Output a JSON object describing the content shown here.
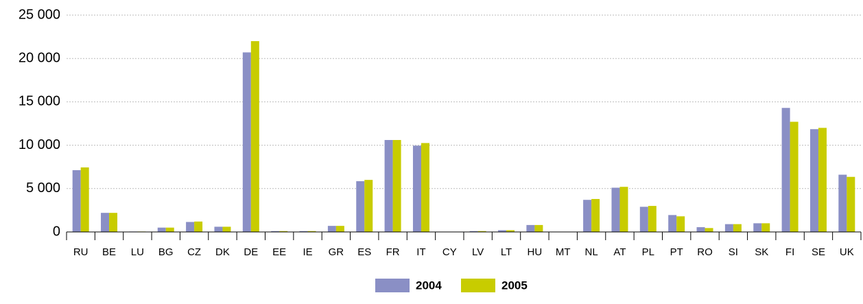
{
  "chart_data": {
    "type": "bar",
    "categories": [
      "RU",
      "BE",
      "LU",
      "BG",
      "CZ",
      "DK",
      "DE",
      "EE",
      "IE",
      "GR",
      "ES",
      "FR",
      "IT",
      "CY",
      "LV",
      "LT",
      "HU",
      "MT",
      "NL",
      "AT",
      "PL",
      "PT",
      "RO",
      "SI",
      "SK",
      "FI",
      "SE",
      "UK"
    ],
    "series": [
      {
        "name": "2004",
        "color": "#8a8fc5",
        "values": [
          7120,
          2200,
          50,
          500,
          1150,
          600,
          20700,
          100,
          100,
          700,
          5850,
          10600,
          9950,
          0,
          100,
          200,
          800,
          0,
          3700,
          5100,
          2900,
          1950,
          550,
          900,
          1000,
          14300,
          11850,
          6600
        ]
      },
      {
        "name": "2005",
        "color": "#c8cc00",
        "values": [
          7440,
          2200,
          50,
          500,
          1200,
          600,
          22000,
          100,
          100,
          700,
          6000,
          10600,
          10250,
          0,
          100,
          200,
          800,
          0,
          3800,
          5200,
          3000,
          1800,
          450,
          900,
          1000,
          12700,
          12000,
          6350
        ]
      }
    ],
    "ylim": [
      0,
      25000
    ],
    "yticks": [
      0,
      {
        "value": 5000,
        "label": "5 000"
      },
      {
        "value": 10000,
        "label": "10 000"
      },
      {
        "value": 15000,
        "label": "15 000"
      },
      {
        "value": 20000,
        "label": "20 000"
      },
      {
        "value": 25000,
        "label": "25 000"
      }
    ],
    "grid": true
  }
}
